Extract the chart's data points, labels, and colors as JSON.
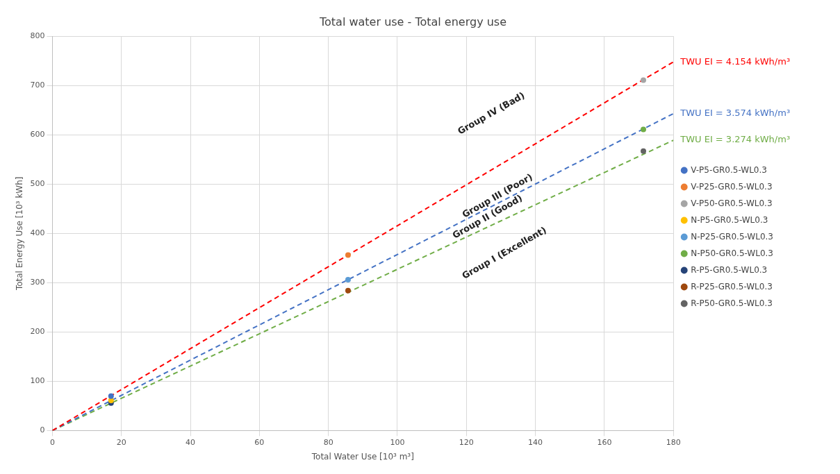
{
  "chart_data": {
    "type": "scatter",
    "title": "Total water use - Total energy use",
    "xlabel": "Total Water Use [10³ m³]",
    "ylabel": "Total Energy Use [10³ kWh]",
    "xlim": [
      0,
      180
    ],
    "xticks": [
      0,
      20,
      40,
      60,
      80,
      100,
      120,
      140,
      160,
      180
    ],
    "ylim": [
      0,
      800
    ],
    "yticks": [
      0,
      100,
      200,
      300,
      400,
      500,
      600,
      700,
      800
    ],
    "grid": true,
    "legend": "right",
    "series": [
      {
        "name": "V-P5-GR0.5-WL0.3",
        "color": "#4472c4",
        "marker": "circle",
        "x": [
          17
        ],
        "values": [
          70
        ]
      },
      {
        "name": "V-P25-GR0.5-WL0.3",
        "color": "#ed7d31",
        "marker": "circle",
        "x": [
          85.7
        ],
        "values": [
          356
        ]
      },
      {
        "name": "V-P50-GR0.5-WL0.3",
        "color": "#a5a5a5",
        "marker": "circle",
        "x": [
          171.3
        ],
        "values": [
          711
        ]
      },
      {
        "name": "N-P5-GR0.5-WL0.3",
        "color": "#ffc000",
        "marker": "circle",
        "x": [
          17
        ],
        "values": [
          61
        ]
      },
      {
        "name": "N-P25-GR0.5-WL0.3",
        "color": "#5b9bd5",
        "marker": "circle",
        "x": [
          85.7
        ],
        "values": [
          306
        ]
      },
      {
        "name": "N-P50-GR0.5-WL0.3",
        "color": "#70ad47",
        "marker": "circle",
        "x": [
          171.3
        ],
        "values": [
          611
        ]
      },
      {
        "name": "R-P5-GR0.5-WL0.3",
        "color": "#264478",
        "marker": "circle",
        "x": [
          17
        ],
        "values": [
          56
        ]
      },
      {
        "name": "R-P25-GR0.5-WL0.3",
        "color": "#9e480e",
        "marker": "circle",
        "x": [
          85.7
        ],
        "values": [
          284
        ]
      },
      {
        "name": "R-P50-GR0.5-WL0.3",
        "color": "#636363",
        "marker": "circle",
        "x": [
          171.3
        ],
        "values": [
          567
        ]
      },
      {
        "name": "TWU EI = 4.154 kWh/m³",
        "type": "line",
        "line_style": "dashed",
        "marker": "none",
        "color": "#ff0000",
        "x": [
          0,
          180
        ],
        "values": [
          0,
          748
        ]
      },
      {
        "name": "TWU EI = 3.574 kWh/m³",
        "type": "line",
        "line_style": "dashed",
        "marker": "none",
        "color": "#4472c4",
        "x": [
          0,
          180
        ],
        "values": [
          0,
          643
        ]
      },
      {
        "name": "TWU EI = 3.274 kWh/m³",
        "type": "line",
        "line_style": "dashed",
        "marker": "none",
        "color": "#70ad47",
        "x": [
          0,
          180
        ],
        "values": [
          0,
          589
        ]
      }
    ],
    "annotations": [
      "Group IV (Bad)",
      "Group III (Poor)",
      "Group II (Good)",
      "Group I (Excellent)"
    ]
  }
}
